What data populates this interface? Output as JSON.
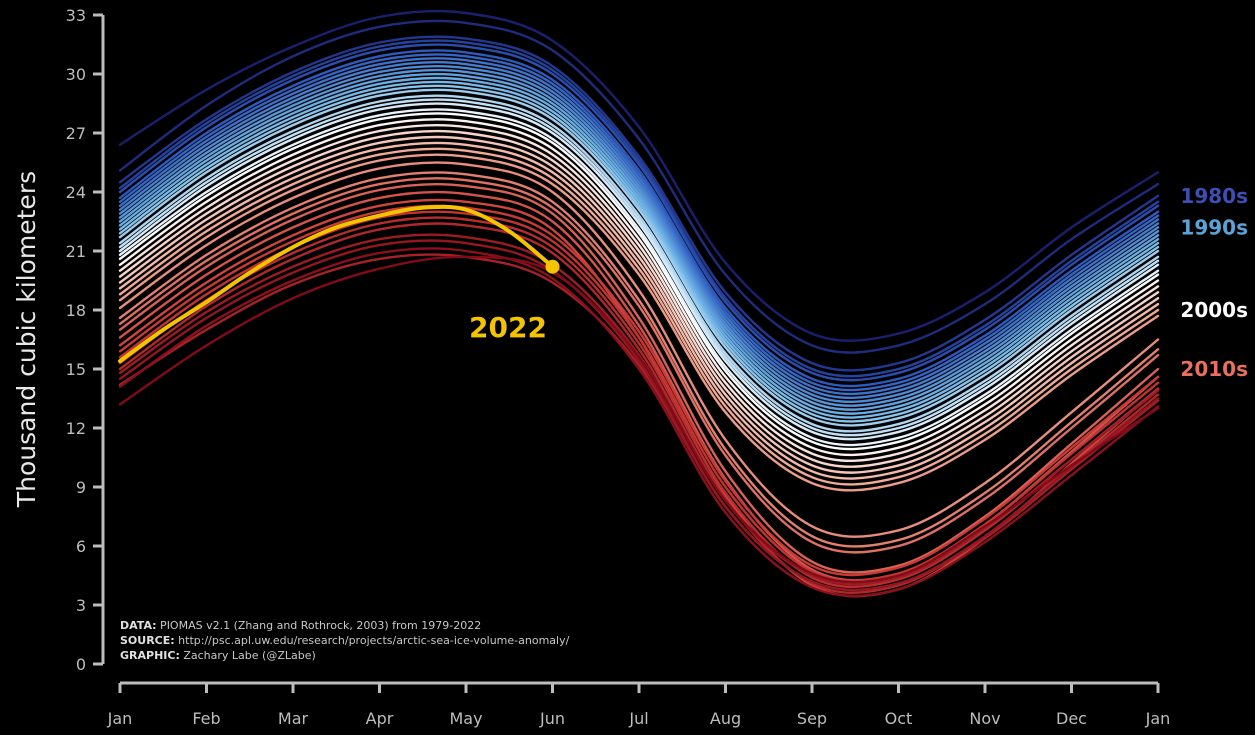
{
  "chart_data": {
    "type": "line",
    "ylabel": "Thousand cubic kilometers",
    "ylim": [
      0,
      33
    ],
    "y_ticks": [
      0,
      3,
      6,
      9,
      12,
      15,
      18,
      21,
      24,
      27,
      30,
      33
    ],
    "x_ticks": [
      "Jan",
      "Feb",
      "Mar",
      "Apr",
      "May",
      "Jun",
      "Jul",
      "Aug",
      "Sep",
      "Oct",
      "Nov",
      "Dec",
      "Jan"
    ],
    "grid": false,
    "highlight": {
      "name": "2022",
      "color": "#f5c400",
      "x": [
        0,
        0.5,
        1,
        1.5,
        2,
        2.5,
        3,
        3.5,
        4,
        4.5,
        5
      ],
      "values": [
        15.4,
        17.0,
        18.4,
        19.9,
        21.2,
        22.2,
        22.8,
        23.2,
        23.1,
        22.0,
        20.2
      ]
    },
    "series": [
      {
        "year": 1979,
        "values": [
          26.4,
          29.2,
          31.4,
          32.9,
          33.1,
          31.7,
          27.3,
          20.4,
          16.8,
          16.8,
          18.9,
          22.2,
          25.0
        ]
      },
      {
        "year": 1980,
        "values": [
          25.1,
          28.4,
          30.9,
          32.4,
          32.6,
          31.2,
          26.7,
          19.8,
          16.2,
          16.2,
          18.3,
          21.6,
          24.4
        ]
      },
      {
        "year": 1981,
        "values": [
          24.5,
          27.7,
          30.1,
          31.6,
          31.8,
          30.4,
          25.8,
          18.9,
          15.3,
          15.3,
          17.5,
          20.8,
          23.8
        ]
      },
      {
        "year": 1982,
        "values": [
          24.2,
          27.5,
          29.9,
          31.4,
          31.6,
          30.2,
          25.6,
          18.6,
          15.0,
          15.0,
          17.2,
          20.5,
          23.5
        ]
      },
      {
        "year": 1983,
        "values": [
          24.0,
          27.3,
          29.7,
          31.2,
          31.4,
          30.0,
          25.4,
          18.4,
          14.8,
          14.8,
          17.0,
          20.3,
          23.3
        ]
      },
      {
        "year": 1984,
        "values": [
          23.7,
          27.0,
          29.4,
          30.9,
          31.1,
          29.7,
          25.1,
          18.1,
          14.5,
          14.5,
          16.7,
          20.0,
          23.0
        ]
      },
      {
        "year": 1985,
        "values": [
          23.5,
          26.8,
          29.2,
          30.7,
          30.9,
          29.5,
          24.9,
          17.9,
          14.3,
          14.3,
          16.5,
          19.8,
          22.8
        ]
      },
      {
        "year": 1986,
        "values": [
          23.3,
          26.6,
          29.0,
          30.5,
          30.7,
          29.3,
          24.7,
          17.7,
          14.1,
          14.1,
          16.3,
          19.6,
          22.6
        ]
      },
      {
        "year": 1987,
        "values": [
          23.1,
          26.4,
          28.8,
          30.3,
          30.5,
          29.1,
          24.5,
          17.5,
          13.9,
          13.9,
          16.1,
          19.4,
          22.4
        ]
      },
      {
        "year": 1988,
        "values": [
          22.9,
          26.2,
          28.6,
          30.1,
          30.3,
          28.9,
          24.3,
          17.3,
          13.7,
          13.7,
          15.9,
          19.2,
          22.2
        ]
      },
      {
        "year": 1989,
        "values": [
          22.7,
          26.0,
          28.4,
          29.9,
          30.1,
          28.7,
          24.1,
          17.1,
          13.5,
          13.5,
          15.7,
          19.0,
          22.0
        ]
      },
      {
        "year": 1990,
        "values": [
          22.5,
          25.8,
          28.2,
          29.7,
          29.9,
          28.5,
          23.9,
          16.9,
          13.3,
          13.3,
          15.5,
          18.8,
          21.8
        ]
      },
      {
        "year": 1991,
        "values": [
          22.3,
          25.6,
          28.0,
          29.5,
          29.7,
          28.3,
          23.7,
          16.7,
          13.1,
          13.1,
          15.3,
          18.6,
          21.6
        ]
      },
      {
        "year": 1992,
        "values": [
          22.1,
          25.4,
          27.8,
          29.3,
          29.5,
          28.1,
          23.5,
          16.5,
          12.9,
          12.9,
          15.1,
          18.4,
          21.4
        ]
      },
      {
        "year": 1993,
        "values": [
          21.9,
          25.2,
          27.6,
          29.1,
          29.3,
          27.9,
          23.3,
          16.3,
          12.7,
          12.7,
          14.9,
          18.2,
          21.2
        ]
      },
      {
        "year": 1994,
        "values": [
          21.7,
          25.0,
          27.4,
          28.9,
          29.1,
          27.7,
          23.1,
          16.1,
          12.5,
          12.5,
          14.7,
          18.0,
          21.0
        ]
      },
      {
        "year": 1995,
        "values": [
          21.4,
          24.7,
          27.1,
          28.6,
          28.8,
          27.4,
          22.8,
          15.8,
          12.2,
          12.2,
          14.4,
          17.7,
          20.7
        ]
      },
      {
        "year": 1996,
        "values": [
          21.2,
          24.5,
          26.9,
          28.4,
          28.6,
          27.2,
          22.6,
          15.6,
          12.0,
          12.0,
          14.2,
          17.5,
          20.5
        ]
      },
      {
        "year": 1997,
        "values": [
          21.0,
          24.3,
          26.7,
          28.2,
          28.4,
          27.0,
          22.4,
          15.4,
          11.8,
          11.8,
          14.0,
          17.3,
          20.3
        ]
      },
      {
        "year": 1998,
        "values": [
          20.8,
          24.0,
          26.4,
          27.9,
          28.1,
          26.7,
          22.1,
          15.1,
          11.5,
          11.5,
          13.7,
          17.0,
          20.0
        ]
      },
      {
        "year": 1999,
        "values": [
          20.6,
          23.8,
          26.2,
          27.7,
          27.9,
          26.5,
          21.9,
          14.9,
          11.3,
          11.3,
          13.5,
          16.8,
          19.8
        ]
      },
      {
        "year": 2000,
        "values": [
          20.3,
          23.5,
          25.9,
          27.4,
          27.6,
          26.2,
          21.6,
          14.6,
          11.0,
          11.0,
          13.2,
          16.5,
          19.5
        ]
      },
      {
        "year": 2001,
        "values": [
          20.0,
          23.2,
          25.6,
          27.1,
          27.3,
          25.9,
          21.3,
          14.3,
          10.7,
          10.7,
          12.9,
          16.2,
          19.2
        ]
      },
      {
        "year": 2002,
        "values": [
          19.7,
          22.9,
          25.3,
          26.8,
          27.0,
          25.6,
          21.0,
          14.0,
          10.4,
          10.4,
          12.6,
          15.9,
          18.9
        ]
      },
      {
        "year": 2003,
        "values": [
          19.4,
          22.6,
          25.0,
          26.5,
          26.7,
          25.3,
          20.7,
          13.7,
          10.1,
          10.1,
          12.3,
          15.6,
          18.6
        ]
      },
      {
        "year": 2004,
        "values": [
          19.1,
          22.3,
          24.7,
          26.2,
          26.4,
          25.0,
          20.4,
          13.4,
          9.8,
          9.8,
          12.0,
          15.3,
          18.3
        ]
      },
      {
        "year": 2005,
        "values": [
          18.8,
          22.0,
          24.4,
          25.9,
          26.1,
          24.7,
          20.1,
          13.1,
          9.5,
          9.5,
          11.7,
          15.0,
          18.0
        ]
      },
      {
        "year": 2006,
        "values": [
          18.5,
          21.7,
          24.1,
          25.6,
          25.8,
          24.4,
          19.8,
          12.8,
          9.2,
          9.2,
          11.4,
          14.7,
          17.7
        ]
      },
      {
        "year": 2007,
        "values": [
          18.1,
          21.3,
          23.7,
          25.2,
          25.4,
          24.0,
          19.0,
          11.4,
          7.0,
          6.8,
          9.2,
          12.8,
          16.5
        ]
      },
      {
        "year": 2008,
        "values": [
          17.6,
          20.8,
          23.2,
          24.7,
          24.9,
          23.5,
          18.5,
          10.9,
          6.5,
          6.3,
          8.7,
          12.3,
          16.0
        ]
      },
      {
        "year": 2009,
        "values": [
          17.3,
          20.5,
          22.9,
          24.4,
          24.6,
          23.2,
          18.2,
          10.6,
          6.2,
          6.0,
          8.4,
          12.0,
          15.7
        ]
      },
      {
        "year": 2010,
        "values": [
          17.0,
          20.2,
          22.6,
          24.1,
          24.3,
          22.9,
          17.6,
          9.8,
          5.2,
          5.0,
          7.5,
          11.2,
          15.0
        ]
      },
      {
        "year": 2011,
        "values": [
          16.6,
          19.8,
          22.2,
          23.7,
          23.9,
          22.5,
          17.2,
          9.4,
          4.8,
          4.6,
          7.1,
          10.8,
          14.6
        ]
      },
      {
        "year": 2012,
        "values": [
          16.2,
          19.4,
          21.8,
          23.3,
          23.5,
          22.1,
          16.6,
          8.6,
          4.0,
          3.8,
          6.4,
          10.2,
          14.0
        ]
      },
      {
        "year": 2013,
        "values": [
          15.9,
          19.1,
          21.5,
          23.0,
          23.2,
          21.8,
          16.9,
          9.3,
          5.0,
          4.9,
          7.4,
          11.0,
          14.6
        ]
      },
      {
        "year": 2014,
        "values": [
          15.6,
          18.8,
          21.2,
          22.7,
          22.9,
          21.5,
          16.6,
          9.0,
          4.7,
          4.6,
          7.1,
          10.7,
          14.3
        ]
      },
      {
        "year": 2015,
        "values": [
          15.3,
          18.5,
          20.9,
          22.4,
          22.6,
          21.2,
          16.3,
          8.7,
          4.4,
          4.3,
          6.8,
          10.4,
          14.0
        ]
      },
      {
        "year": 2016,
        "values": [
          15.0,
          18.2,
          20.6,
          22.1,
          22.3,
          20.9,
          16.0,
          8.4,
          4.1,
          4.0,
          6.5,
          10.1,
          13.7
        ]
      },
      {
        "year": 2017,
        "values": [
          14.2,
          17.0,
          19.3,
          20.6,
          20.7,
          19.4,
          15.2,
          8.0,
          4.2,
          4.1,
          6.4,
          9.9,
          13.4
        ]
      },
      {
        "year": 2018,
        "values": [
          14.8,
          17.9,
          20.2,
          21.6,
          21.7,
          20.3,
          15.7,
          8.3,
          4.5,
          4.4,
          6.9,
          10.4,
          13.9
        ]
      },
      {
        "year": 2019,
        "values": [
          14.5,
          17.6,
          19.9,
          21.3,
          21.4,
          20.0,
          15.4,
          8.0,
          4.2,
          4.1,
          6.5,
          10.0,
          13.5
        ]
      },
      {
        "year": 2020,
        "values": [
          14.1,
          17.2,
          19.5,
          20.9,
          21.0,
          19.6,
          15.0,
          7.7,
          3.9,
          3.8,
          6.2,
          9.6,
          13.1
        ]
      },
      {
        "year": 2021,
        "values": [
          13.2,
          16.2,
          18.6,
          20.1,
          20.7,
          19.9,
          15.6,
          8.3,
          4.6,
          4.5,
          7.0,
          10.1,
          13.0
        ]
      }
    ],
    "decade_labels": [
      {
        "label": "1980s",
        "color": "#3b4fb5",
        "y": 23.8
      },
      {
        "label": "1990s",
        "color": "#5aa3d8",
        "y": 22.2
      },
      {
        "label": "2000s",
        "color": "#ffffff",
        "y": 18.0
      },
      {
        "label": "2010s",
        "color": "#e8705c",
        "y": 15.0
      }
    ],
    "highlight_label": "2022",
    "credits": [
      {
        "key": "DATA:",
        "text": " PIOMAS v2.1 (Zhang and Rothrock, 2003) from 1979-2022"
      },
      {
        "key": "SOURCE:",
        "text": " http://psc.apl.uw.edu/research/projects/arctic-sea-ice-volume-anomaly/"
      },
      {
        "key": "GRAPHIC:",
        "text": " Zachary Labe (@ZLabe)"
      }
    ]
  }
}
